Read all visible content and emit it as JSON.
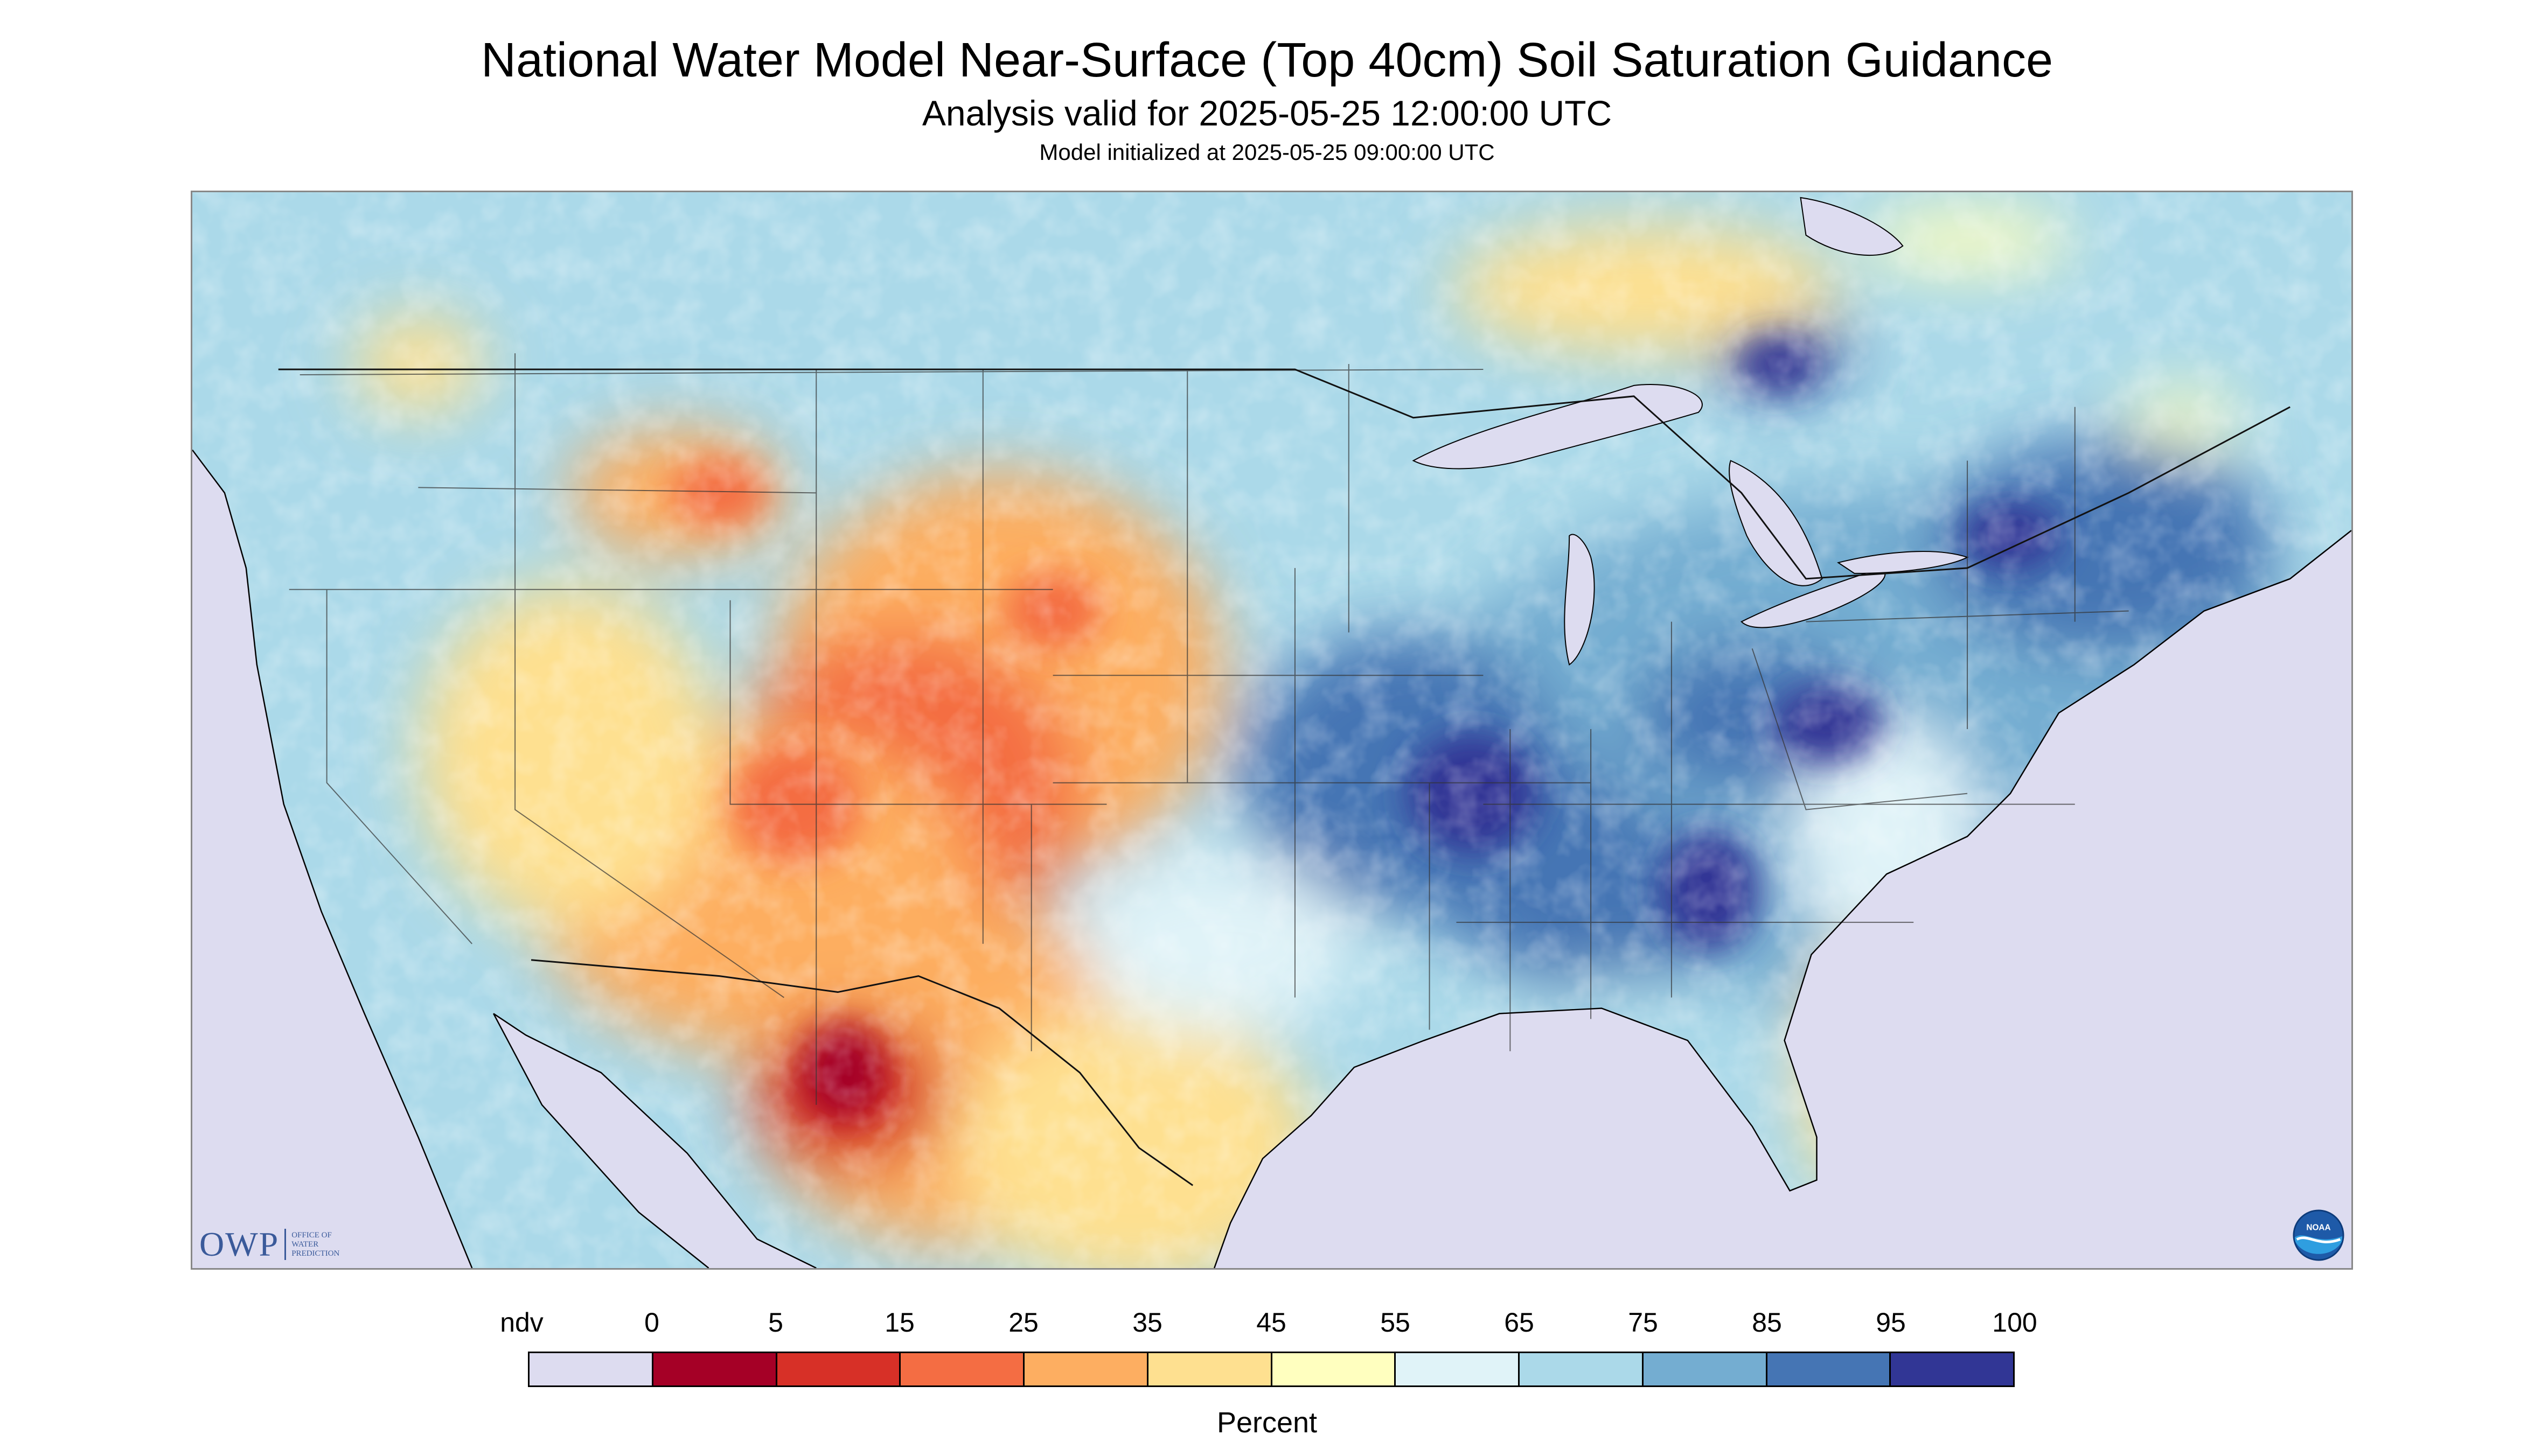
{
  "header": {
    "title": "National Water Model Near-Surface (Top 40cm) Soil Saturation Guidance",
    "valid": "Analysis valid for 2025-05-25 12:00:00 UTC",
    "initialized": "Model initialized at 2025-05-25 09:00:00 UTC"
  },
  "map": {
    "region": "Continental United States with southern Canada and northern Mexico",
    "variable": "near-surface soil saturation",
    "nodata_color": "#dddcf0",
    "water_color": "#dddcf0"
  },
  "legend": {
    "ndv_label": "ndv",
    "ticks": [
      "0",
      "5",
      "15",
      "25",
      "35",
      "45",
      "55",
      "65",
      "75",
      "85",
      "95",
      "100"
    ],
    "unit": "Percent",
    "colors": [
      {
        "range": "ndv",
        "hex": "#dddcf0"
      },
      {
        "range": "0-5",
        "hex": "#a50026"
      },
      {
        "range": "5-15",
        "hex": "#d73027"
      },
      {
        "range": "15-25",
        "hex": "#f46d43"
      },
      {
        "range": "25-35",
        "hex": "#fdae61"
      },
      {
        "range": "35-45",
        "hex": "#fee090"
      },
      {
        "range": "45-55",
        "hex": "#ffffbf"
      },
      {
        "range": "55-65",
        "hex": "#e0f3f8"
      },
      {
        "range": "65-75",
        "hex": "#abd9e9"
      },
      {
        "range": "75-85",
        "hex": "#74add1"
      },
      {
        "range": "85-95",
        "hex": "#4575b4"
      },
      {
        "range": "95-100",
        "hex": "#313695"
      }
    ]
  },
  "logos": {
    "owp_mark": "OWP",
    "owp_line1": "Office of",
    "owp_line2": "Water",
    "owp_line3": "Prediction",
    "noaa_mark": "NOAA"
  }
}
